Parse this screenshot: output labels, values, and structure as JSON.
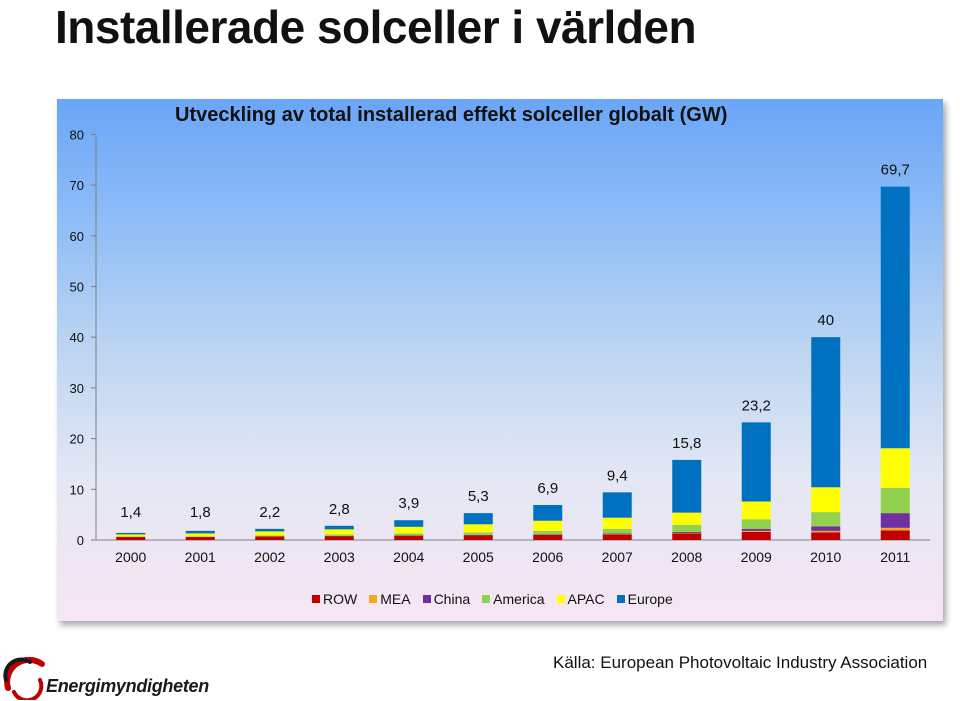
{
  "page": {
    "title": "Installerade solceller i världen",
    "source": "Källa: European Photovoltaic Industry Association",
    "logo_text": "Energimyndigheten"
  },
  "chart_data": {
    "type": "bar",
    "stacked": true,
    "title": "Utveckling av total installerad effekt solceller globalt (GW)",
    "xlabel": "",
    "ylabel": "",
    "ylim": [
      0,
      80
    ],
    "yticks": [
      "0",
      "10",
      "20",
      "30",
      "40",
      "50",
      "60",
      "70",
      "80"
    ],
    "grid": false,
    "legend_position": "bottom",
    "categories": [
      "2000",
      "2001",
      "2002",
      "2003",
      "2004",
      "2005",
      "2006",
      "2007",
      "2008",
      "2009",
      "2010",
      "2011"
    ],
    "totals": [
      1.4,
      1.8,
      2.2,
      2.8,
      3.9,
      5.3,
      6.9,
      9.4,
      15.8,
      23.2,
      40,
      69.7
    ],
    "total_labels": [
      "1,4",
      "1,8",
      "2,2",
      "2,8",
      "3,9",
      "5,3",
      "6,9",
      "9,4",
      "15,8",
      "23,2",
      "40",
      "69,7"
    ],
    "series": [
      {
        "name": "ROW",
        "color": "#c00000",
        "values": [
          0.6,
          0.6,
          0.7,
          0.7,
          0.8,
          0.9,
          1.0,
          1.1,
          1.3,
          1.6,
          1.5,
          1.9
        ]
      },
      {
        "name": "MEA",
        "color": "#f5a623",
        "values": [
          0.0,
          0.0,
          0.0,
          0.0,
          0.0,
          0.0,
          0.0,
          0.1,
          0.1,
          0.2,
          0.3,
          0.5
        ]
      },
      {
        "name": "China",
        "color": "#7030a0",
        "values": [
          0.0,
          0.0,
          0.0,
          0.1,
          0.1,
          0.1,
          0.1,
          0.1,
          0.2,
          0.4,
          0.9,
          2.9
        ]
      },
      {
        "name": "America",
        "color": "#92d050",
        "values": [
          0.1,
          0.1,
          0.2,
          0.3,
          0.4,
          0.5,
          0.7,
          0.9,
          1.4,
          1.9,
          2.8,
          5.0
        ]
      },
      {
        "name": "APAC",
        "color": "#ffff00",
        "values": [
          0.4,
          0.6,
          0.8,
          1.0,
          1.3,
          1.6,
          2.0,
          2.2,
          2.4,
          3.5,
          4.9,
          7.8
        ]
      },
      {
        "name": "Europe",
        "color": "#0070c0",
        "values": [
          0.3,
          0.5,
          0.5,
          0.7,
          1.3,
          2.2,
          3.1,
          5.0,
          10.4,
          15.6,
          29.6,
          51.6
        ]
      }
    ]
  }
}
